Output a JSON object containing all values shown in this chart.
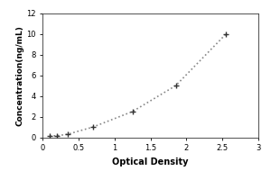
{
  "x_data": [
    0.1,
    0.2,
    0.35,
    0.7,
    1.25,
    1.85,
    2.55
  ],
  "y_data": [
    0.16,
    0.16,
    0.31,
    1.0,
    2.5,
    5.0,
    10.0
  ],
  "xlabel": "Optical Density",
  "ylabel": "Concentration(ng/mL)",
  "xlim": [
    0,
    3
  ],
  "ylim": [
    0,
    12
  ],
  "xticks": [
    0,
    0.5,
    1.0,
    1.5,
    2.0,
    2.5,
    3.0
  ],
  "xtick_labels": [
    "0",
    "0.5",
    "1",
    "1.5",
    "2",
    "2.5",
    "3"
  ],
  "yticks": [
    0,
    2,
    4,
    6,
    8,
    10,
    12
  ],
  "line_color": "#888888",
  "marker": "+",
  "marker_size": 5,
  "marker_color": "#333333",
  "line_style": ":",
  "line_width": 1.2,
  "bg_color": "#ffffff",
  "plot_bg": "#ffffff",
  "xlabel_fontsize": 7,
  "ylabel_fontsize": 6.5,
  "tick_fontsize": 6,
  "marker_edge_width": 1.0
}
